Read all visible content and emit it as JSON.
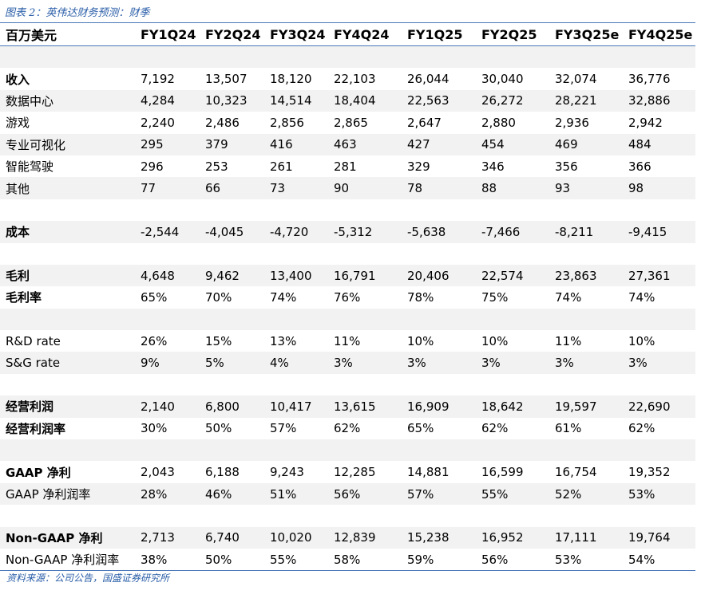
{
  "title": "图表 2：英伟达财务预测：财季",
  "header": {
    "label": "百万美元",
    "columns": [
      "FY1Q24",
      "FY2Q24",
      "FY3Q24",
      "FY4Q24",
      "FY1Q25",
      "FY2Q25",
      "FY3Q25e",
      "FY4Q25e"
    ]
  },
  "rows": [
    {
      "label": "",
      "values": [
        "",
        "",
        "",
        "",
        "",
        "",
        "",
        ""
      ]
    },
    {
      "label": "收入",
      "bold": true,
      "values": [
        "7,192",
        "13,507",
        "18,120",
        "22,103",
        "26,044",
        "30,040",
        "32,074",
        "36,776"
      ]
    },
    {
      "label": "数据中心",
      "values": [
        "4,284",
        "10,323",
        "14,514",
        "18,404",
        "22,563",
        "26,272",
        "28,221",
        "32,886"
      ]
    },
    {
      "label": "游戏",
      "values": [
        "2,240",
        "2,486",
        "2,856",
        "2,865",
        "2,647",
        "2,880",
        "2,936",
        "2,942"
      ]
    },
    {
      "label": "专业可视化",
      "values": [
        "295",
        "379",
        "416",
        "463",
        "427",
        "454",
        "469",
        "484"
      ]
    },
    {
      "label": "智能驾驶",
      "values": [
        "296",
        "253",
        "261",
        "281",
        "329",
        "346",
        "356",
        "366"
      ]
    },
    {
      "label": "其他",
      "values": [
        "77",
        "66",
        "73",
        "90",
        "78",
        "88",
        "93",
        "98"
      ]
    },
    {
      "label": "",
      "values": [
        "",
        "",
        "",
        "",
        "",
        "",
        "",
        ""
      ]
    },
    {
      "label": "成本",
      "bold": true,
      "values": [
        "-2,544",
        "-4,045",
        "-4,720",
        "-5,312",
        "-5,638",
        "-7,466",
        "-8,211",
        "-9,415"
      ]
    },
    {
      "label": "",
      "values": [
        "",
        "",
        "",
        "",
        "",
        "",
        "",
        ""
      ]
    },
    {
      "label": "毛利",
      "bold": true,
      "values": [
        "4,648",
        "9,462",
        "13,400",
        "16,791",
        "20,406",
        "22,574",
        "23,863",
        "27,361"
      ]
    },
    {
      "label": "毛利率",
      "bold": true,
      "values": [
        "65%",
        "70%",
        "74%",
        "76%",
        "78%",
        "75%",
        "74%",
        "74%"
      ]
    },
    {
      "label": "",
      "values": [
        "",
        "",
        "",
        "",
        "",
        "",
        "",
        ""
      ]
    },
    {
      "label": "R&D rate",
      "values": [
        "26%",
        "15%",
        "13%",
        "11%",
        "10%",
        "10%",
        "11%",
        "10%"
      ]
    },
    {
      "label": "S&G rate",
      "values": [
        "9%",
        "5%",
        "4%",
        "3%",
        "3%",
        "3%",
        "3%",
        "3%"
      ]
    },
    {
      "label": "",
      "values": [
        "",
        "",
        "",
        "",
        "",
        "",
        "",
        ""
      ]
    },
    {
      "label": "经营利润",
      "bold": true,
      "values": [
        "2,140",
        "6,800",
        "10,417",
        "13,615",
        "16,909",
        "18,642",
        "19,597",
        "22,690"
      ]
    },
    {
      "label": "经营利润率",
      "bold": true,
      "values": [
        "30%",
        "50%",
        "57%",
        "62%",
        "65%",
        "62%",
        "61%",
        "62%"
      ]
    },
    {
      "label": "",
      "values": [
        "",
        "",
        "",
        "",
        "",
        "",
        "",
        ""
      ]
    },
    {
      "label": "GAAP 净利",
      "bold": true,
      "values": [
        "2,043",
        "6,188",
        "9,243",
        "12,285",
        "14,881",
        "16,599",
        "16,754",
        "19,352"
      ]
    },
    {
      "label": "GAAP 净利润率",
      "values": [
        "28%",
        "46%",
        "51%",
        "56%",
        "57%",
        "55%",
        "52%",
        "53%"
      ]
    },
    {
      "label": "",
      "values": [
        "",
        "",
        "",
        "",
        "",
        "",
        "",
        ""
      ]
    },
    {
      "label": "Non-GAAP 净利",
      "bold": true,
      "values": [
        "2,713",
        "6,740",
        "10,020",
        "12,839",
        "15,238",
        "16,952",
        "17,111",
        "19,764"
      ]
    },
    {
      "label": "Non-GAAP 净利润率",
      "values": [
        "38%",
        "50%",
        "55%",
        "58%",
        "59%",
        "56%",
        "53%",
        "54%"
      ]
    }
  ],
  "source": "资料来源：公司公告，国盛证券研究所"
}
